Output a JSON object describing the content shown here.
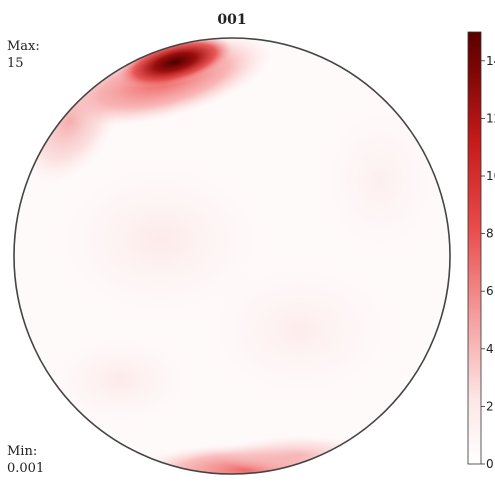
{
  "chart_data": {
    "type": "heatmap",
    "title": "001",
    "max_label": "Max:",
    "max_value": "15",
    "min_label": "Min:",
    "min_value": "0.001",
    "colorbar": {
      "range": [
        0,
        15
      ],
      "ticks": [
        "0",
        "2",
        "4",
        "6",
        "8",
        "10",
        "12",
        "14"
      ],
      "colors": [
        "#ffffff",
        "#fde6e6",
        "#f59a9a",
        "#e84a4a",
        "#c41a1a",
        "#7a0505",
        "#5c0000"
      ]
    }
  }
}
